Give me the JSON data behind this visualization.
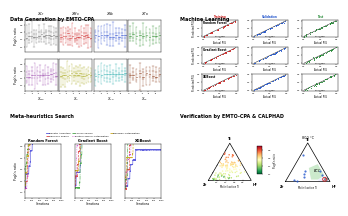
{
  "panel_titles": {
    "top_left": "Data Generation by EMTO-CPA",
    "top_right": "Machine Learning",
    "bot_left": "Meta-heuristics Search",
    "bot_right": "Verification by EMTO-CPA & CALPHAD"
  },
  "bg_color": "#ffffff",
  "tl_colors_top": [
    "#666666",
    "#cc2222",
    "#2244cc",
    "#228822"
  ],
  "tl_colors_bot": [
    "#9944aa",
    "#aaaa22",
    "#22aaaa",
    "#883311"
  ],
  "tl_elem_top": [
    "$X_{Cr}$",
    "$X_{Mo}$",
    "$X_{Nb}$",
    "$X_{Ta}$"
  ],
  "tl_elem_bot": [
    "$X_{Mo}$",
    "$X_{V}$",
    "$X_{Ta}$",
    "$X_{W}$"
  ],
  "ml_models": [
    "Random Forest",
    "Gradient Boost",
    "XGBoost"
  ],
  "ml_sets": [
    "Training",
    "Validation",
    "Test"
  ],
  "ml_colors": [
    [
      "#cc2222",
      "#2255cc",
      "#228833"
    ],
    [
      "#cc2222",
      "#2255cc",
      "#228833"
    ],
    [
      "#cc2222",
      "#2255cc",
      "#228833"
    ]
  ],
  "meta_algorithms": [
    "Genetic Algorithm",
    "Harmony Search",
    "Cuckoo Search",
    "Particle Swarm Optimization",
    "Bayesian Optimization"
  ],
  "meta_colors": [
    "#5555dd",
    "#dd4444",
    "#44aa44",
    "#cc44cc",
    "#ccaa22"
  ],
  "meta_styles": [
    "-",
    "--",
    "-.",
    ":",
    "--"
  ],
  "meta_models": [
    "Random Forest",
    "Gradient Boost",
    "XGBoost"
  ]
}
